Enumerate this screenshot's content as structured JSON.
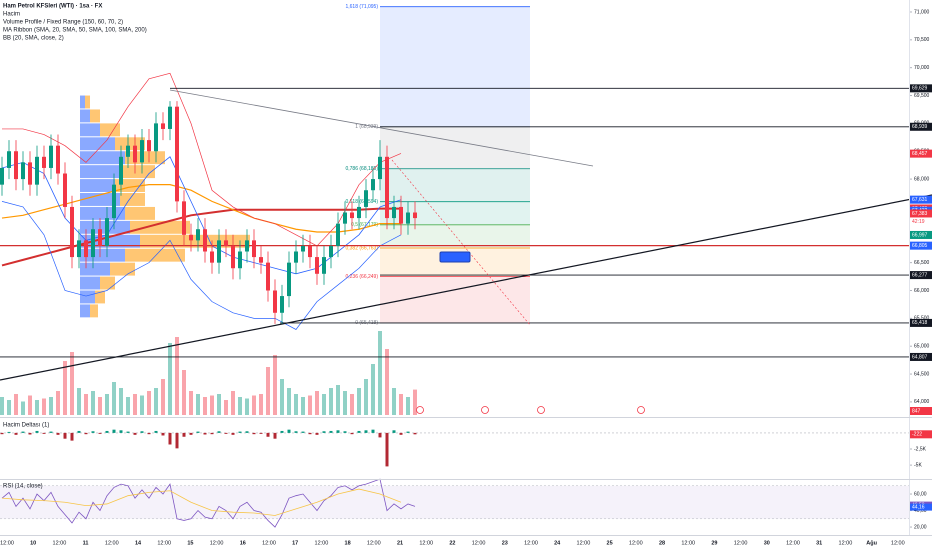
{
  "chart_data": {
    "type": "candlestick",
    "title": "Ham Petrol KFSleri (WTI) · 1sa · FX",
    "indicators": [
      "Hacim",
      "Volume Profile / Fixed Range (150, 60, 70, 2)",
      "MA Ribbon (SMA, 20, SMA, 50, SMA, 100, SMA, 200)",
      "BB (20, SMA, close, 2)"
    ],
    "open": [
      67.9,
      68.2,
      68.5,
      68.0,
      68.3,
      67.9,
      68.4,
      68.2,
      68.6,
      68.1,
      67.5,
      66.6,
      66.9,
      66.6,
      67.1,
      66.8,
      67.3,
      67.9,
      68.4,
      68.6,
      68.3,
      68.7,
      68.5,
      69.0,
      68.9,
      69.3,
      67.6,
      67.0,
      66.9,
      67.1,
      66.7,
      66.5,
      66.9,
      66.8,
      66.4,
      66.7,
      66.9,
      66.6,
      66.5,
      66.0,
      65.6,
      65.9,
      66.5,
      66.7,
      66.8,
      66.6,
      66.3,
      66.6,
      66.8,
      67.2,
      67.4,
      67.3,
      67.5,
      67.8,
      68.0,
      68.4,
      67.3,
      67.5,
      67.2,
      67.4
    ],
    "high": [
      68.4,
      68.7,
      68.7,
      68.5,
      68.5,
      68.6,
      68.6,
      68.8,
      68.8,
      68.3,
      67.7,
      67.1,
      67.1,
      67.3,
      67.3,
      67.5,
      68.1,
      68.6,
      68.8,
      68.8,
      68.9,
      68.9,
      69.2,
      69.2,
      69.4,
      69.4,
      67.8,
      67.2,
      67.3,
      67.3,
      66.9,
      67.1,
      67.1,
      67.0,
      66.9,
      67.1,
      67.1,
      66.8,
      66.7,
      66.2,
      66.1,
      66.7,
      66.9,
      67.0,
      67.0,
      66.8,
      66.8,
      67.0,
      67.4,
      67.6,
      67.6,
      67.7,
      68.0,
      68.2,
      68.7,
      68.6,
      67.7,
      67.7,
      67.6,
      67.6
    ],
    "low": [
      67.7,
      68.0,
      67.8,
      67.8,
      67.7,
      67.7,
      68.0,
      68.0,
      67.9,
      67.3,
      66.4,
      66.4,
      66.4,
      66.4,
      66.6,
      66.6,
      67.1,
      67.7,
      68.2,
      68.1,
      68.1,
      68.3,
      68.3,
      68.7,
      68.7,
      67.4,
      66.8,
      66.7,
      66.7,
      66.5,
      66.3,
      66.3,
      66.6,
      66.2,
      66.2,
      66.5,
      66.4,
      66.3,
      65.8,
      65.4,
      65.4,
      65.7,
      66.3,
      66.5,
      66.4,
      66.1,
      66.1,
      66.4,
      66.6,
      67.0,
      67.1,
      67.1,
      67.3,
      67.6,
      67.8,
      67.1,
      67.1,
      67.0,
      67.0,
      67.1
    ],
    "close": [
      68.2,
      68.5,
      68.0,
      68.3,
      67.9,
      68.4,
      68.2,
      68.6,
      68.1,
      67.5,
      66.6,
      66.9,
      66.6,
      67.1,
      66.8,
      67.3,
      67.9,
      68.4,
      68.6,
      68.3,
      68.7,
      68.5,
      69.0,
      68.9,
      69.3,
      67.6,
      67.0,
      66.9,
      67.1,
      66.7,
      66.5,
      66.9,
      66.8,
      66.4,
      66.7,
      66.9,
      66.6,
      66.5,
      66.0,
      65.6,
      65.9,
      66.5,
      66.7,
      66.8,
      66.6,
      66.3,
      66.6,
      66.8,
      67.2,
      67.4,
      67.3,
      67.5,
      67.8,
      68.0,
      68.4,
      67.3,
      67.5,
      67.2,
      67.4,
      67.3
    ],
    "colors": {
      "up": "#089981",
      "down": "#f23645"
    },
    "ylim": [
      63.765,
      71.215
    ],
    "yticks": [
      {
        "value": 71,
        "label": "71,000"
      },
      {
        "value": 70.5,
        "label": "70,500"
      },
      {
        "value": 70,
        "label": "70,000"
      },
      {
        "value": 69.5,
        "label": "69,500"
      },
      {
        "value": 69,
        "label": "69,000"
      },
      {
        "value": 68.5,
        "label": "68,500"
      },
      {
        "value": 68,
        "label": "68,000"
      },
      {
        "value": 67.5,
        "label": "67,500"
      },
      {
        "value": 67,
        "label": "67,000"
      },
      {
        "value": 66.5,
        "label": "66,500"
      },
      {
        "value": 66,
        "label": "66,000"
      },
      {
        "value": 65.5,
        "label": "65,500"
      },
      {
        "value": 65,
        "label": "65,000"
      },
      {
        "value": 64.5,
        "label": "64,500"
      },
      {
        "value": 64,
        "label": "64,000"
      }
    ],
    "time_labels": [
      "12:00",
      "10",
      "12:00",
      "11",
      "12:00",
      "14",
      "12:00",
      "15",
      "12:00",
      "16",
      "12:00",
      "17",
      "12:00",
      "18",
      "12:00",
      "21",
      "12:00",
      "22",
      "12:00",
      "23",
      "12:00",
      "24",
      "12:00",
      "25",
      "12:00",
      "28",
      "12:00",
      "29",
      "12:00",
      "30",
      "12:00",
      "31",
      "12:00",
      "Ağu",
      "12:00"
    ],
    "overlay_x": [
      0,
      3,
      6,
      9,
      12,
      15,
      18,
      21,
      24,
      27,
      30,
      33,
      36,
      39,
      42,
      45,
      48,
      51,
      54,
      57
    ],
    "overlays": [
      {
        "color": "#d32f2f",
        "values": [
          66.45,
          66.55,
          66.65,
          66.75,
          66.85,
          66.95,
          67.05,
          67.15,
          67.25,
          67.35,
          67.4,
          67.45,
          67.45,
          67.45,
          67.45,
          67.45,
          67.45,
          67.45,
          67.47,
          67.47
        ]
      },
      {
        "color": "#ff9800",
        "values": [
          67.3,
          67.35,
          67.45,
          67.55,
          67.65,
          67.75,
          67.85,
          67.9,
          67.9,
          67.8,
          67.6,
          67.45,
          67.3,
          67.2,
          67.1,
          67.05,
          67.05,
          67.1,
          67.2,
          67.2
        ]
      },
      {
        "color": "#2962ff",
        "values": [
          68.2,
          68.3,
          68.1,
          67.3,
          66.9,
          67.0,
          67.6,
          68.1,
          68.4,
          67.6,
          66.8,
          66.6,
          66.5,
          66.4,
          66.3,
          66.4,
          66.7,
          67.0,
          67.5,
          67.63
        ]
      },
      {
        "color": "#f23645",
        "values": [
          68.9,
          68.9,
          68.8,
          68.6,
          68.3,
          68.7,
          69.3,
          69.8,
          69.9,
          69.0,
          67.8,
          67.5,
          67.3,
          67.2,
          67.0,
          66.8,
          67.2,
          67.9,
          68.3,
          68.46
        ]
      },
      {
        "color": "#2962ff",
        "values": [
          67.6,
          67.5,
          67.0,
          66.0,
          65.9,
          66.0,
          66.3,
          66.5,
          66.9,
          66.2,
          65.8,
          65.6,
          65.5,
          65.5,
          65.3,
          65.8,
          66.1,
          66.4,
          66.8,
          67.0
        ]
      }
    ],
    "volume": {
      "values": [
        600,
        500,
        700,
        450,
        650,
        500,
        550,
        600,
        800,
        1800,
        2100,
        900,
        700,
        800,
        600,
        700,
        1100,
        900,
        600,
        700,
        650,
        800,
        900,
        1200,
        2400,
        2600,
        1500,
        800,
        700,
        600,
        650,
        700,
        500,
        800,
        600,
        550,
        650,
        700,
        1600,
        2000,
        1200,
        900,
        700,
        600,
        650,
        800,
        700,
        900,
        1000,
        800,
        700,
        900,
        1200,
        1700,
        2800,
        2200,
        900,
        700,
        600,
        847
      ],
      "ylim": [
        0,
        3000
      ]
    },
    "volume_profile": {
      "prices": [
        65.5,
        65.75,
        66.0,
        66.25,
        66.5,
        66.75,
        67.0,
        67.25,
        67.5,
        67.75,
        68.0,
        68.25,
        68.5,
        68.75,
        69.0,
        69.25
      ],
      "up": [
        10,
        15,
        20,
        30,
        45,
        60,
        50,
        45,
        40,
        35,
        40,
        45,
        35,
        20,
        10,
        5
      ],
      "down": [
        8,
        10,
        15,
        25,
        60,
        110,
        60,
        30,
        25,
        30,
        35,
        40,
        30,
        20,
        10,
        5
      ],
      "colors": {
        "up": "#2962ff",
        "down": "#ff9800"
      }
    },
    "fib": [
      {
        "ratio": 1.618,
        "price": 71.095,
        "label": "1,618 (71,095)",
        "color": "#2962ff"
      },
      {
        "ratio": 1,
        "price": 68.939,
        "label": "1 (68,939)",
        "color": "#787b86"
      },
      {
        "ratio": 0.786,
        "price": 68.185,
        "label": "0,786 (68,185)",
        "color": "#00897b"
      },
      {
        "ratio": 0.618,
        "price": 67.594,
        "label": "0,618 (67,594)",
        "color": "#089981"
      },
      {
        "ratio": 0.5,
        "price": 67.179,
        "label": "0,5 (67,179)",
        "color": "#4caf50"
      },
      {
        "ratio": 0.382,
        "price": 66.763,
        "label": "0,382 (66,763)",
        "color": "#ff9800"
      },
      {
        "ratio": 0.236,
        "price": 66.249,
        "label": "0,236 (66,249)",
        "color": "#f23645"
      },
      {
        "ratio": 0,
        "price": 65.418,
        "label": "0 (65,418)",
        "color": "#787b86"
      }
    ],
    "price_tags": [
      {
        "value": 69.629,
        "label": "69,629",
        "color": "#131722",
        "line": true
      },
      {
        "value": 68.939,
        "label": "68,939",
        "color": "#131722",
        "line": true
      },
      {
        "value": 68.457,
        "label": "68,457",
        "color": "#f23645",
        "line": false
      },
      {
        "value": 67.631,
        "label": "67,631",
        "color": "#2962ff",
        "line": false
      },
      {
        "value": 67.472,
        "label": "67,472",
        "color": "#f23645",
        "line": false
      },
      {
        "value": 67.432,
        "label": "67,432",
        "color": "#2962ff",
        "line": false
      },
      {
        "value": 67.383,
        "label": "67,383",
        "color": "#f23645",
        "line": false
      },
      {
        "value": 66.997,
        "label": "66,997",
        "color": "#089981",
        "line": false
      },
      {
        "value": 66.805,
        "label": "66,805",
        "color": "#2962ff",
        "line": true
      },
      {
        "value": 66.277,
        "label": "66,277",
        "color": "#131722",
        "line": true
      },
      {
        "value": 65.418,
        "label": "65,418",
        "color": "#131722",
        "line": true
      },
      {
        "value": 64.807,
        "label": "64,807",
        "color": "#131722",
        "line": true
      }
    ],
    "countdown": "42:19",
    "delta": {
      "title": "Hacim Deltası (1)",
      "values": [
        -200,
        150,
        -300,
        200,
        -250,
        300,
        -150,
        200,
        -300,
        -900,
        -1200,
        300,
        -200,
        250,
        -150,
        300,
        500,
        400,
        200,
        -300,
        250,
        -200,
        300,
        -400,
        -1800,
        -2400,
        -600,
        -300,
        200,
        -250,
        -200,
        250,
        -150,
        -300,
        200,
        250,
        -200,
        -150,
        -600,
        -900,
        300,
        500,
        250,
        200,
        -200,
        -300,
        250,
        300,
        400,
        250,
        -200,
        300,
        400,
        500,
        -700,
        -5200,
        400,
        -300,
        200,
        -222
      ],
      "ylim": [
        -7000,
        2000
      ],
      "yticks": [
        {
          "value": -2500,
          "label": "-2,5K"
        },
        {
          "value": -5000,
          "label": "-5K"
        }
      ],
      "tag": {
        "value": -222,
        "label": "-222",
        "color": "#f23645"
      }
    },
    "rsi": {
      "title": "RSI (14, close)",
      "values": [
        55,
        62,
        45,
        55,
        42,
        60,
        52,
        62,
        45,
        35,
        25,
        38,
        30,
        50,
        40,
        58,
        68,
        72,
        70,
        55,
        65,
        55,
        68,
        60,
        72,
        30,
        28,
        30,
        40,
        32,
        30,
        45,
        40,
        30,
        45,
        50,
        40,
        38,
        28,
        20,
        35,
        55,
        58,
        60,
        50,
        40,
        52,
        58,
        68,
        70,
        65,
        70,
        72,
        75,
        78,
        40,
        48,
        42,
        48,
        45
      ],
      "ma": [
        55,
        53,
        52,
        50,
        46,
        48,
        58,
        62,
        64,
        50,
        40,
        38,
        37,
        34,
        42,
        50,
        60,
        66,
        60,
        50
      ],
      "colors": {
        "line": "#7e57c2",
        "ma": "#f7c548"
      },
      "ylim": [
        14,
        77
      ],
      "band": [
        30,
        70
      ],
      "yticks": [
        {
          "value": 60,
          "label": "60,00"
        },
        {
          "value": 40,
          "label": "40,00"
        },
        {
          "value": 20,
          "label": "20,00"
        }
      ],
      "tags": [
        {
          "value": 46.58,
          "label": "46,58",
          "color": "#7e57c2"
        },
        {
          "value": 44.16,
          "label": "44,16",
          "color": "#2962ff"
        }
      ]
    }
  }
}
